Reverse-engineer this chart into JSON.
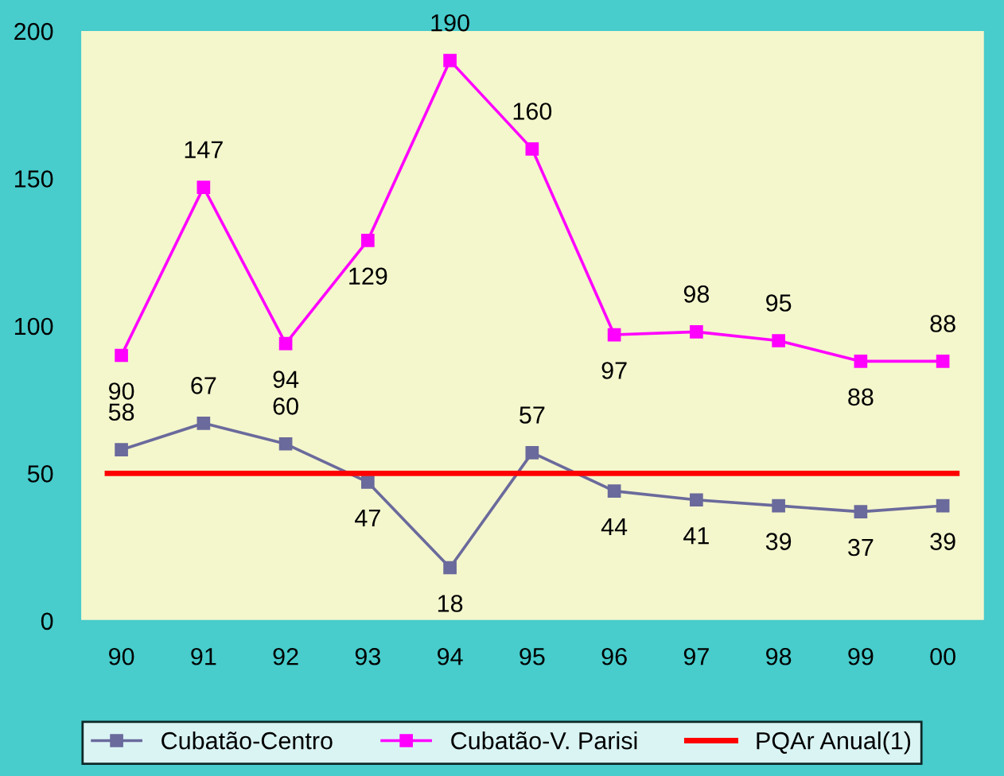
{
  "chart_data": {
    "type": "line",
    "categories": [
      "90",
      "91",
      "92",
      "93",
      "94",
      "95",
      "96",
      "97",
      "98",
      "99",
      "00"
    ],
    "series": [
      {
        "name": "Cubatão-Centro",
        "color": "#6a6a9c",
        "values": [
          58,
          67,
          60,
          47,
          18,
          57,
          44,
          41,
          39,
          37,
          39
        ]
      },
      {
        "name": "Cubatão-V. Parisi",
        "color": "#ff00ff",
        "values": [
          90,
          147,
          94,
          129,
          190,
          160,
          97,
          98,
          95,
          88,
          88
        ]
      }
    ],
    "ref_lines": [
      {
        "axis": "y",
        "value": 50,
        "label": "PQAr Anual(1)",
        "color": "#ff0000"
      }
    ],
    "ylim": [
      0,
      200
    ],
    "yticks": [
      0,
      50,
      100,
      150,
      200
    ],
    "data_labels": true,
    "marker": "square",
    "line_style": "solid",
    "grid": false,
    "legend": "bottom"
  }
}
